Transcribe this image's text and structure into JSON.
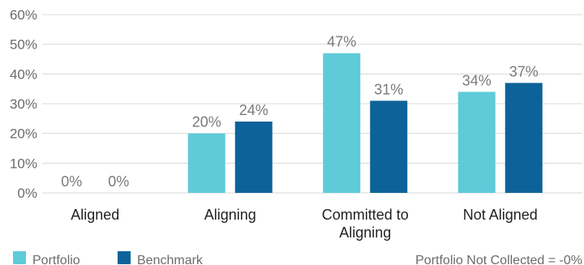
{
  "chart_data": {
    "type": "bar",
    "categories": [
      [
        "Aligned"
      ],
      [
        "Aligning"
      ],
      [
        "Committed to",
        "Aligning"
      ],
      [
        "Not Aligned"
      ]
    ],
    "series": [
      {
        "name": "Portfolio",
        "values": [
          0,
          20,
          47,
          34
        ],
        "labels": [
          "0%",
          "20%",
          "47%",
          "34%"
        ],
        "color": "#5ecbd8"
      },
      {
        "name": "Benchmark",
        "values": [
          0,
          24,
          31,
          37
        ],
        "labels": [
          "0%",
          "24%",
          "31%",
          "37%"
        ],
        "color": "#0d6399"
      }
    ],
    "ylim": [
      0,
      60
    ],
    "yticks": [
      0,
      10,
      20,
      30,
      40,
      50,
      60
    ],
    "ytick_labels": [
      "0%",
      "10%",
      "20%",
      "30%",
      "40%",
      "50%",
      "60%"
    ],
    "grid": true,
    "legend": "bottom-left",
    "title": "",
    "xlabel": "",
    "ylabel": ""
  },
  "footnote": "Portfolio Not Collected = -0%",
  "colors": {
    "grid": "#d9d9d9"
  }
}
